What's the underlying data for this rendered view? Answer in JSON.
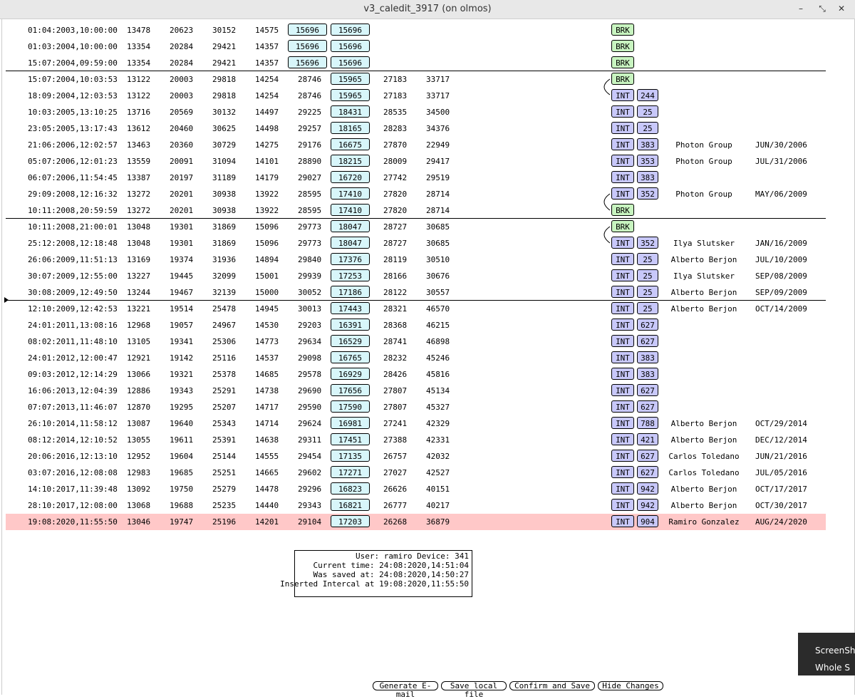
{
  "window": {
    "title": "v3_caledit_3917 (on olmos)"
  },
  "rows": [
    {
      "date": "01:04:2003,10:00:00",
      "c1": "13478",
      "c2": "20623",
      "c3": "30152",
      "c4": "14575",
      "b1": "15696",
      "b2": "15696",
      "c7": "",
      "c8": "",
      "tag": "BRK",
      "num": "",
      "user": "",
      "due": ""
    },
    {
      "date": "01:03:2004,10:00:00",
      "c1": "13354",
      "c2": "20284",
      "c3": "29421",
      "c4": "14357",
      "b1": "15696",
      "b2": "15696",
      "c7": "",
      "c8": "",
      "tag": "BRK",
      "num": "",
      "user": "",
      "due": ""
    },
    {
      "date": "15:07:2004,09:59:00",
      "c1": "13354",
      "c2": "20284",
      "c3": "29421",
      "c4": "14357",
      "b1": "15696",
      "b2": "15696",
      "c7": "",
      "c8": "",
      "tag": "BRK",
      "num": "",
      "user": "",
      "due": ""
    },
    {
      "date": "15:07:2004,10:03:53",
      "c1": "13122",
      "c2": "20003",
      "c3": "29818",
      "c4": "14254",
      "c5": "28746",
      "b2": "15965",
      "c7": "27183",
      "c8": "33717",
      "tag": "BRK",
      "num": "",
      "user": "",
      "due": ""
    },
    {
      "date": "18:09:2004,12:03:53",
      "c1": "13122",
      "c2": "20003",
      "c3": "29818",
      "c4": "14254",
      "c5": "28746",
      "b2": "15965",
      "c7": "27183",
      "c8": "33717",
      "tag": "INT",
      "num": "244",
      "user": "",
      "due": ""
    },
    {
      "date": "10:03:2005,13:10:25",
      "c1": "13716",
      "c2": "20569",
      "c3": "30132",
      "c4": "14497",
      "c5": "29225",
      "b2": "18431",
      "c7": "28535",
      "c8": "34500",
      "tag": "INT",
      "num": "25",
      "user": "",
      "due": ""
    },
    {
      "date": "23:05:2005,13:17:43",
      "c1": "13612",
      "c2": "20460",
      "c3": "30625",
      "c4": "14498",
      "c5": "29257",
      "b2": "18165",
      "c7": "28283",
      "c8": "34376",
      "tag": "INT",
      "num": "25",
      "user": "",
      "due": ""
    },
    {
      "date": "21:06:2006,12:02:57",
      "c1": "13463",
      "c2": "20360",
      "c3": "30729",
      "c4": "14275",
      "c5": "29176",
      "b2": "16675",
      "c7": "27870",
      "c8": "22949",
      "tag": "INT",
      "num": "383",
      "user": "Photon Group",
      "due": "JUN/30/2006"
    },
    {
      "date": "05:07:2006,12:01:23",
      "c1": "13559",
      "c2": "20091",
      "c3": "31094",
      "c4": "14101",
      "c5": "28890",
      "b2": "18215",
      "c7": "28009",
      "c8": "29417",
      "tag": "INT",
      "num": "353",
      "user": "Photon Group",
      "due": "JUL/31/2006"
    },
    {
      "date": "06:07:2006,11:54:45",
      "c1": "13387",
      "c2": "20197",
      "c3": "31189",
      "c4": "14179",
      "c5": "29027",
      "b2": "16720",
      "c7": "27742",
      "c8": "29519",
      "tag": "INT",
      "num": "383",
      "user": "",
      "due": ""
    },
    {
      "date": "29:09:2008,12:16:32",
      "c1": "13272",
      "c2": "20201",
      "c3": "30938",
      "c4": "13922",
      "c5": "28595",
      "b2": "17410",
      "c7": "27820",
      "c8": "28714",
      "tag": "INT",
      "num": "352",
      "user": "Photon Group",
      "due": "MAY/06/2009"
    },
    {
      "date": "10:11:2008,20:59:59",
      "c1": "13272",
      "c2": "20201",
      "c3": "30938",
      "c4": "13922",
      "c5": "28595",
      "b2": "17410",
      "c7": "27820",
      "c8": "28714",
      "tag": "BRK",
      "num": "",
      "user": "",
      "due": ""
    },
    {
      "date": "10:11:2008,21:00:01",
      "c1": "13048",
      "c2": "19301",
      "c3": "31869",
      "c4": "15096",
      "c5": "29773",
      "b2": "18047",
      "c7": "28727",
      "c8": "30685",
      "tag": "BRK",
      "num": "",
      "user": "",
      "due": ""
    },
    {
      "date": "25:12:2008,12:18:48",
      "c1": "13048",
      "c2": "19301",
      "c3": "31869",
      "c4": "15096",
      "c5": "29773",
      "b2": "18047",
      "c7": "28727",
      "c8": "30685",
      "tag": "INT",
      "num": "352",
      "user": "Ilya Slutsker",
      "due": "JAN/16/2009"
    },
    {
      "date": "26:06:2009,11:51:13",
      "c1": "13169",
      "c2": "19374",
      "c3": "31936",
      "c4": "14894",
      "c5": "29840",
      "b2": "17376",
      "c7": "28119",
      "c8": "30510",
      "tag": "INT",
      "num": "25",
      "user": "Alberto Berjon",
      "due": "JUL/10/2009"
    },
    {
      "date": "30:07:2009,12:55:00",
      "c1": "13227",
      "c2": "19445",
      "c3": "32099",
      "c4": "15001",
      "c5": "29939",
      "b2": "17253",
      "c7": "28166",
      "c8": "30676",
      "tag": "INT",
      "num": "25",
      "user": "Ilya Slutsker",
      "due": "SEP/08/2009"
    },
    {
      "date": "30:08:2009,12:49:50",
      "c1": "13244",
      "c2": "19467",
      "c3": "32139",
      "c4": "15000",
      "c5": "30052",
      "b2": "17186",
      "c7": "28122",
      "c8": "30557",
      "tag": "INT",
      "num": "25",
      "user": "Alberto Berjon",
      "due": "SEP/09/2009"
    },
    {
      "date": "12:10:2009,12:42:53",
      "c1": "13221",
      "c2": "19514",
      "c3": "25478",
      "c4": "14945",
      "c5": "30013",
      "b2": "17443",
      "c7": "28321",
      "c8": "46570",
      "tag": "INT",
      "num": "25",
      "user": "Alberto Berjon",
      "due": "OCT/14/2009"
    },
    {
      "date": "24:01:2011,13:08:16",
      "c1": "12968",
      "c2": "19057",
      "c3": "24967",
      "c4": "14530",
      "c5": "29203",
      "b2": "16391",
      "c7": "28368",
      "c8": "46215",
      "tag": "INT",
      "num": "627",
      "user": "",
      "due": ""
    },
    {
      "date": "08:02:2011,11:48:10",
      "c1": "13105",
      "c2": "19341",
      "c3": "25306",
      "c4": "14773",
      "c5": "29634",
      "b2": "16529",
      "c7": "28741",
      "c8": "46898",
      "tag": "INT",
      "num": "627",
      "user": "",
      "due": ""
    },
    {
      "date": "24:01:2012,12:00:47",
      "c1": "12921",
      "c2": "19142",
      "c3": "25116",
      "c4": "14537",
      "c5": "29098",
      "b2": "16765",
      "c7": "28232",
      "c8": "45246",
      "tag": "INT",
      "num": "383",
      "user": "",
      "due": ""
    },
    {
      "date": "09:03:2012,12:14:29",
      "c1": "13066",
      "c2": "19321",
      "c3": "25378",
      "c4": "14685",
      "c5": "29578",
      "b2": "16929",
      "c7": "28426",
      "c8": "45816",
      "tag": "INT",
      "num": "383",
      "user": "",
      "due": ""
    },
    {
      "date": "16:06:2013,12:04:39",
      "c1": "12886",
      "c2": "19343",
      "c3": "25291",
      "c4": "14738",
      "c5": "29690",
      "b2": "17656",
      "c7": "27807",
      "c8": "45134",
      "tag": "INT",
      "num": "627",
      "user": "",
      "due": ""
    },
    {
      "date": "07:07:2013,11:46:07",
      "c1": "12870",
      "c2": "19295",
      "c3": "25207",
      "c4": "14717",
      "c5": "29590",
      "b2": "17590",
      "c7": "27807",
      "c8": "45327",
      "tag": "INT",
      "num": "627",
      "user": "",
      "due": ""
    },
    {
      "date": "26:10:2014,11:58:12",
      "c1": "13087",
      "c2": "19640",
      "c3": "25343",
      "c4": "14714",
      "c5": "29624",
      "b2": "16981",
      "c7": "27241",
      "c8": "42329",
      "tag": "INT",
      "num": "788",
      "user": "Alberto Berjon",
      "due": "OCT/29/2014"
    },
    {
      "date": "08:12:2014,12:10:52",
      "c1": "13055",
      "c2": "19611",
      "c3": "25391",
      "c4": "14638",
      "c5": "29311",
      "b2": "17451",
      "c7": "27388",
      "c8": "42331",
      "tag": "INT",
      "num": "421",
      "user": "Alberto Berjon",
      "due": "DEC/12/2014"
    },
    {
      "date": "20:06:2016,12:13:10",
      "c1": "12952",
      "c2": "19604",
      "c3": "25144",
      "c4": "14555",
      "c5": "29454",
      "b2": "17135",
      "c7": "26757",
      "c8": "42032",
      "tag": "INT",
      "num": "627",
      "user": "Carlos Toledano",
      "due": "JUN/21/2016"
    },
    {
      "date": "03:07:2016,12:08:08",
      "c1": "12983",
      "c2": "19685",
      "c3": "25251",
      "c4": "14665",
      "c5": "29602",
      "b2": "17271",
      "c7": "27027",
      "c8": "42527",
      "tag": "INT",
      "num": "627",
      "user": "Carlos Toledano",
      "due": "JUL/05/2016"
    },
    {
      "date": "14:10:2017,11:39:48",
      "c1": "13092",
      "c2": "19750",
      "c3": "25279",
      "c4": "14478",
      "c5": "29296",
      "b2": "16823",
      "c7": "26626",
      "c8": "40151",
      "tag": "INT",
      "num": "942",
      "user": "Alberto Berjon",
      "due": "OCT/17/2017"
    },
    {
      "date": "28:10:2017,12:08:00",
      "c1": "13068",
      "c2": "19688",
      "c3": "25235",
      "c4": "14440",
      "c5": "29343",
      "b2": "16821",
      "c7": "26777",
      "c8": "40217",
      "tag": "INT",
      "num": "942",
      "user": "Alberto Berjon",
      "due": "OCT/30/2017"
    },
    {
      "date": "19:08:2020,11:55:50",
      "c1": "13046",
      "c2": "19747",
      "c3": "25196",
      "c4": "14201",
      "c5": "29104",
      "b2": "17203",
      "c7": "26268",
      "c8": "36879",
      "tag": "INT",
      "num": "904",
      "user": "Ramiro Gonzalez",
      "due": "AUG/24/2020",
      "highlight": true
    }
  ],
  "status": {
    "user_line": "User: ramiro Device: 341",
    "current_line": "Current time: 24:08:2020,14:51:04",
    "saved_line": "Was saved at: 24:08:2020,14:50:27",
    "inserted_line": "Inserted Intercal at 19:08:2020,11:55:50"
  },
  "buttons": {
    "email": "Generate E-mail",
    "save_local": "Save local file",
    "confirm": "Confirm and Save",
    "hide": "Hide Changes"
  },
  "popup": {
    "line1": "ScreenSh",
    "line2": "Whole S"
  }
}
